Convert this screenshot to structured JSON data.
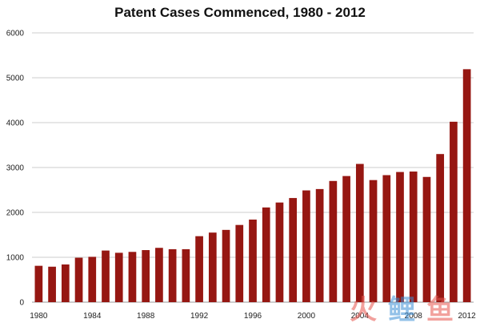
{
  "chart_data": {
    "type": "bar",
    "title": "Patent Cases Commenced, 1980 - 2012",
    "xlabel": "",
    "ylabel": "",
    "ylim": [
      0,
      6000
    ],
    "yticks": [
      0,
      1000,
      2000,
      3000,
      4000,
      5000,
      6000
    ],
    "grid": true,
    "legend": "none",
    "bar_color": "#961712",
    "categories": [
      "1980",
      "1981",
      "1982",
      "1983",
      "1984",
      "1985",
      "1986",
      "1987",
      "1988",
      "1989",
      "1990",
      "1991",
      "1992",
      "1993",
      "1994",
      "1995",
      "1996",
      "1997",
      "1998",
      "1999",
      "2000",
      "2001",
      "2002",
      "2003",
      "2004",
      "2005",
      "2006",
      "2007",
      "2008",
      "2009",
      "2010",
      "2011",
      "2012"
    ],
    "xtick_labels": [
      "1980",
      "1984",
      "1988",
      "1992",
      "1996",
      "2000",
      "2004",
      "2008",
      "2012"
    ],
    "values": [
      810,
      790,
      840,
      990,
      1010,
      1150,
      1100,
      1120,
      1160,
      1210,
      1180,
      1180,
      1470,
      1550,
      1610,
      1720,
      1840,
      2110,
      2220,
      2320,
      2490,
      2520,
      2700,
      2810,
      3080,
      2720,
      2830,
      2900,
      2910,
      2790,
      3300,
      4020,
      5190
    ]
  },
  "watermark": {
    "chars": [
      "火",
      "鲤",
      "鱼"
    ],
    "colors": [
      "#e8554e",
      "#3b8fd6",
      "#e8554e"
    ]
  }
}
